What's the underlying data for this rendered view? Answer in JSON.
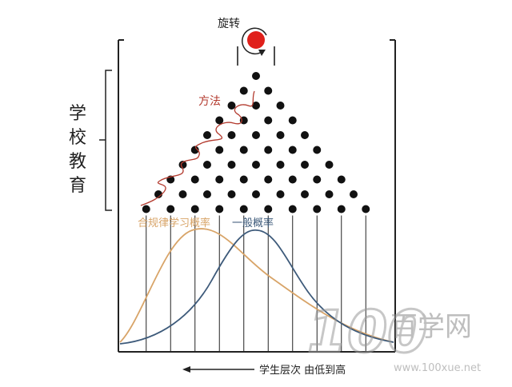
{
  "labels": {
    "rotate": "旋转",
    "method": "方法",
    "school_education": [
      "学",
      "校",
      "教",
      "育"
    ],
    "curve_regular": "合规律学习概率",
    "curve_general": "一般概率",
    "axis_caption": "学生层次 由低到高"
  },
  "watermark": {
    "logo_digits": "100",
    "brand": "百学网",
    "url": "www.100xue.net"
  },
  "colors": {
    "ball": "#e0201b",
    "peg": "#111111",
    "method_path": "#b33a2e",
    "method_text": "#b33a2e",
    "curve_regular": "#d8a468",
    "curve_general": "#3d5a7a",
    "container": "#222222"
  },
  "peg_rows": [
    1,
    2,
    3,
    4,
    5,
    6,
    7,
    8,
    9,
    10
  ],
  "curves": {
    "regular": {
      "peak_bin": 3,
      "shape": "right-skewed"
    },
    "general": {
      "peak_bin": 6,
      "shape": "bell"
    }
  }
}
